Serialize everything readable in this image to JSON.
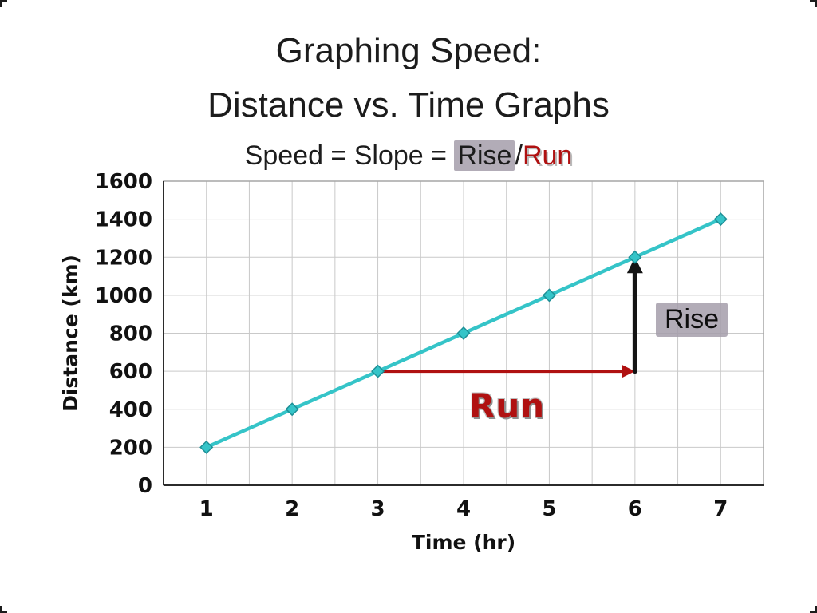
{
  "slide": {
    "title_line1": "Graphing Speed:",
    "title_line2": "Distance vs. Time Graphs",
    "subtitle": {
      "prefix": "Speed = Slope = ",
      "rise": "Rise",
      "slash": "/",
      "run": "Run"
    }
  },
  "colors": {
    "line_teal": "#35c4c8",
    "marker_edge": "#1d8f96",
    "run_red": "#b01111",
    "rise_black": "#141414",
    "highlight_gray": "#a49eaa",
    "grid_gray": "#c9c9c9"
  },
  "chart_data": {
    "type": "line",
    "title": "",
    "xlabel": "Time (hr)",
    "ylabel": "Distance (km)",
    "x": [
      1,
      2,
      3,
      4,
      5,
      6,
      7
    ],
    "values": [
      200,
      400,
      600,
      800,
      1000,
      1200,
      1400
    ],
    "series_name": "Distance",
    "series_color": "#35c4c8",
    "marker_edge_color": "#1d8f96",
    "marker_shape": "diamond",
    "xlim": [
      0.5,
      7.5
    ],
    "ylim": [
      0,
      1600
    ],
    "xtick_labels": [
      "1",
      "2",
      "3",
      "4",
      "5",
      "6",
      "7"
    ],
    "ytick_step": 200,
    "xtick_minor": 0.5,
    "grid": true,
    "legend": "none",
    "annotations": [
      {
        "name": "run",
        "label": "Run",
        "color": "#b01111",
        "from": [
          3,
          600
        ],
        "to": [
          6,
          600
        ],
        "stroke_width": 4,
        "head_length": 16,
        "head_width": 8
      },
      {
        "name": "rise",
        "label": "Rise",
        "color": "#141414",
        "from": [
          6,
          600
        ],
        "to": [
          6,
          1200
        ],
        "stroke_width": 6,
        "head_length": 20,
        "head_width": 10
      }
    ]
  }
}
